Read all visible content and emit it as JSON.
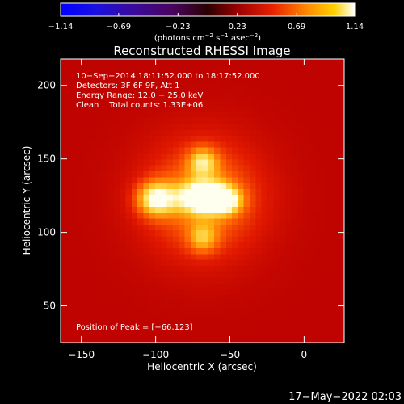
{
  "chart_data": {
    "type": "heatmap",
    "title": "Reconstructed RHESSI Image",
    "xlabel": "Heliocentric X (arcsec)",
    "ylabel": "Heliocentric Y (arcsec)",
    "xlim": [
      -164,
      27
    ],
    "ylim": [
      25,
      218
    ],
    "xticks": [
      {
        "value": -150,
        "label": "−150"
      },
      {
        "value": -100,
        "label": "−100"
      },
      {
        "value": -50,
        "label": "−50"
      },
      {
        "value": 0,
        "label": "0"
      }
    ],
    "yticks": [
      {
        "value": 50,
        "label": "50"
      },
      {
        "value": 100,
        "label": "100"
      },
      {
        "value": 150,
        "label": "150"
      },
      {
        "value": 200,
        "label": "200"
      }
    ],
    "colorbar": {
      "min": -1.14,
      "max": 1.14,
      "ticks": [
        {
          "value": -1.14,
          "label": "−1.14"
        },
        {
          "value": -0.69,
          "label": "−0.69"
        },
        {
          "value": -0.23,
          "label": "−0.23"
        },
        {
          "value": 0.23,
          "label": "0.23"
        },
        {
          "value": 0.69,
          "label": "0.69"
        },
        {
          "value": 1.14,
          "label": "1.14"
        }
      ],
      "label_parts": [
        "(photons cm",
        "−2",
        " s",
        "−1",
        " asec",
        "−2",
        ")"
      ]
    },
    "annotations": [
      "10−Sep−2014 18:11:52.000 to 18:17:52.000",
      "Detectors: 3F 6F 9F, Att 1",
      "Energy Range: 12.0 − 25.0 keV",
      "Clean    Total counts: 1.33E+06"
    ],
    "peak_text": "Position of Peak = [−66,123]",
    "background_level": 0.32,
    "sources": [
      {
        "x": -68,
        "y": 123,
        "sigma_x": 28,
        "sigma_y": 28,
        "amp": 0.38
      },
      {
        "x": -100,
        "y": 123,
        "sigma_x": 9,
        "sigma_y": 8,
        "amp": 0.55
      },
      {
        "x": -66,
        "y": 124,
        "sigma_x": 12,
        "sigma_y": 7,
        "amp": 0.72
      },
      {
        "x": -52,
        "y": 121,
        "sigma_x": 7,
        "sigma_y": 6,
        "amp": 0.3
      },
      {
        "x": -68,
        "y": 148,
        "sigma_x": 7,
        "sigma_y": 7,
        "amp": 0.38
      },
      {
        "x": -68,
        "y": 96,
        "sigma_x": 7,
        "sigma_y": 7,
        "amp": 0.3
      }
    ]
  },
  "footer": {
    "timestamp": "17−May−2022 02:03"
  }
}
